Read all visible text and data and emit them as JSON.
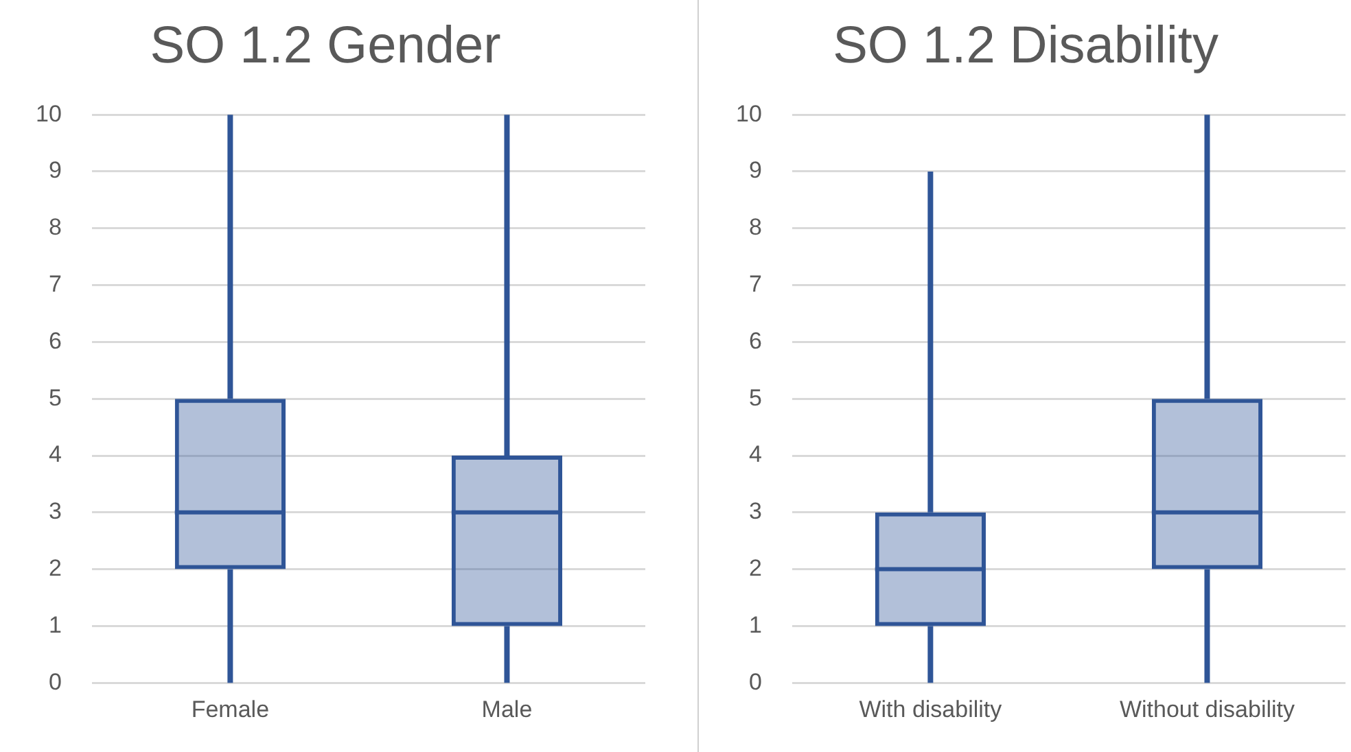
{
  "chart_data": [
    {
      "type": "box",
      "title": "SO 1.2 Gender",
      "categories": [
        "Female",
        "Male"
      ],
      "color": "#2f5597",
      "boxes": [
        {
          "low": 0,
          "q1": 2,
          "median": 3,
          "q3": 5,
          "high": 10
        },
        {
          "low": 0,
          "q1": 1,
          "median": 3,
          "q3": 4,
          "high": 10
        }
      ],
      "ylim": [
        0,
        10
      ],
      "yticks": [
        0,
        1,
        2,
        3,
        4,
        5,
        6,
        7,
        8,
        9,
        10
      ],
      "grid": "y",
      "legend": false
    },
    {
      "type": "box",
      "title": "SO 1.2 Disability",
      "categories": [
        "With disability",
        "Without disability"
      ],
      "color": "#2f5597",
      "boxes": [
        {
          "low": 0,
          "q1": 1,
          "median": 2,
          "q3": 3,
          "high": 9
        },
        {
          "low": 0,
          "q1": 2,
          "median": 3,
          "q3": 5,
          "high": 10
        }
      ],
      "ylim": [
        0,
        10
      ],
      "yticks": [
        0,
        1,
        2,
        3,
        4,
        5,
        6,
        7,
        8,
        9,
        10
      ],
      "grid": "y",
      "legend": false
    }
  ]
}
